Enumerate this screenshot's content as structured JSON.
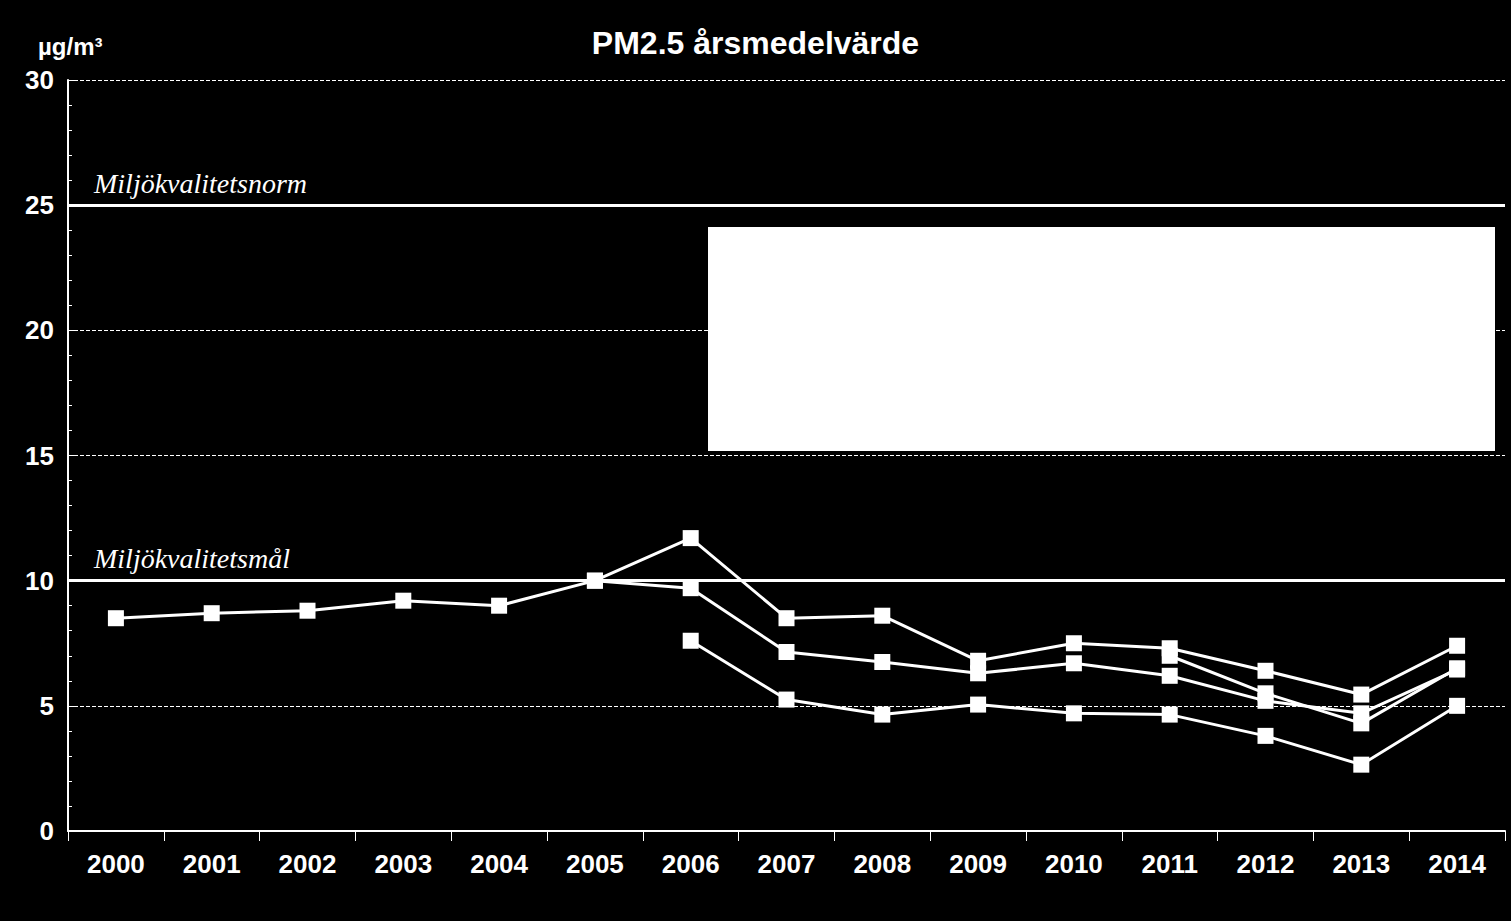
{
  "chart_data": {
    "type": "line",
    "title": "PM2.5 årsmedelvärde",
    "y_label": "µg/m³",
    "categories": [
      "2000",
      "2001",
      "2002",
      "2003",
      "2004",
      "2005",
      "2006",
      "2007",
      "2008",
      "2009",
      "2010",
      "2011",
      "2012",
      "2013",
      "2014"
    ],
    "series": [
      {
        "color": "#ffffff",
        "marker": "square",
        "values": [
          8.5,
          8.7,
          8.8,
          9.2,
          9.0,
          10.0,
          11.7,
          8.5,
          8.6,
          6.8,
          7.5,
          7.3,
          6.4,
          5.45,
          7.4
        ]
      },
      {
        "color": "#ffffff",
        "marker": "square",
        "values": [
          null,
          null,
          null,
          null,
          null,
          10.0,
          9.7,
          7.15,
          6.75,
          6.3,
          6.7,
          6.2,
          5.2,
          4.7,
          6.45
        ]
      },
      {
        "color": "#ffffff",
        "marker": "square",
        "values": [
          null,
          null,
          null,
          null,
          null,
          null,
          7.6,
          5.25,
          4.65,
          5.05,
          4.7,
          4.65,
          3.8,
          2.65,
          5.0
        ]
      },
      {
        "color": "#ffffff",
        "marker": "square",
        "values": [
          null,
          null,
          null,
          null,
          null,
          null,
          null,
          null,
          null,
          null,
          null,
          7.0,
          5.5,
          4.3,
          6.5
        ]
      }
    ],
    "annotations": [
      {
        "text": "Miljökvalitetsnorm",
        "y": 25
      },
      {
        "text": "Miljökvalitetsmål",
        "y": 10
      }
    ],
    "ylim": [
      0,
      30
    ],
    "yticks": [
      0,
      5,
      10,
      15,
      20,
      25,
      30
    ],
    "grid": true
  }
}
